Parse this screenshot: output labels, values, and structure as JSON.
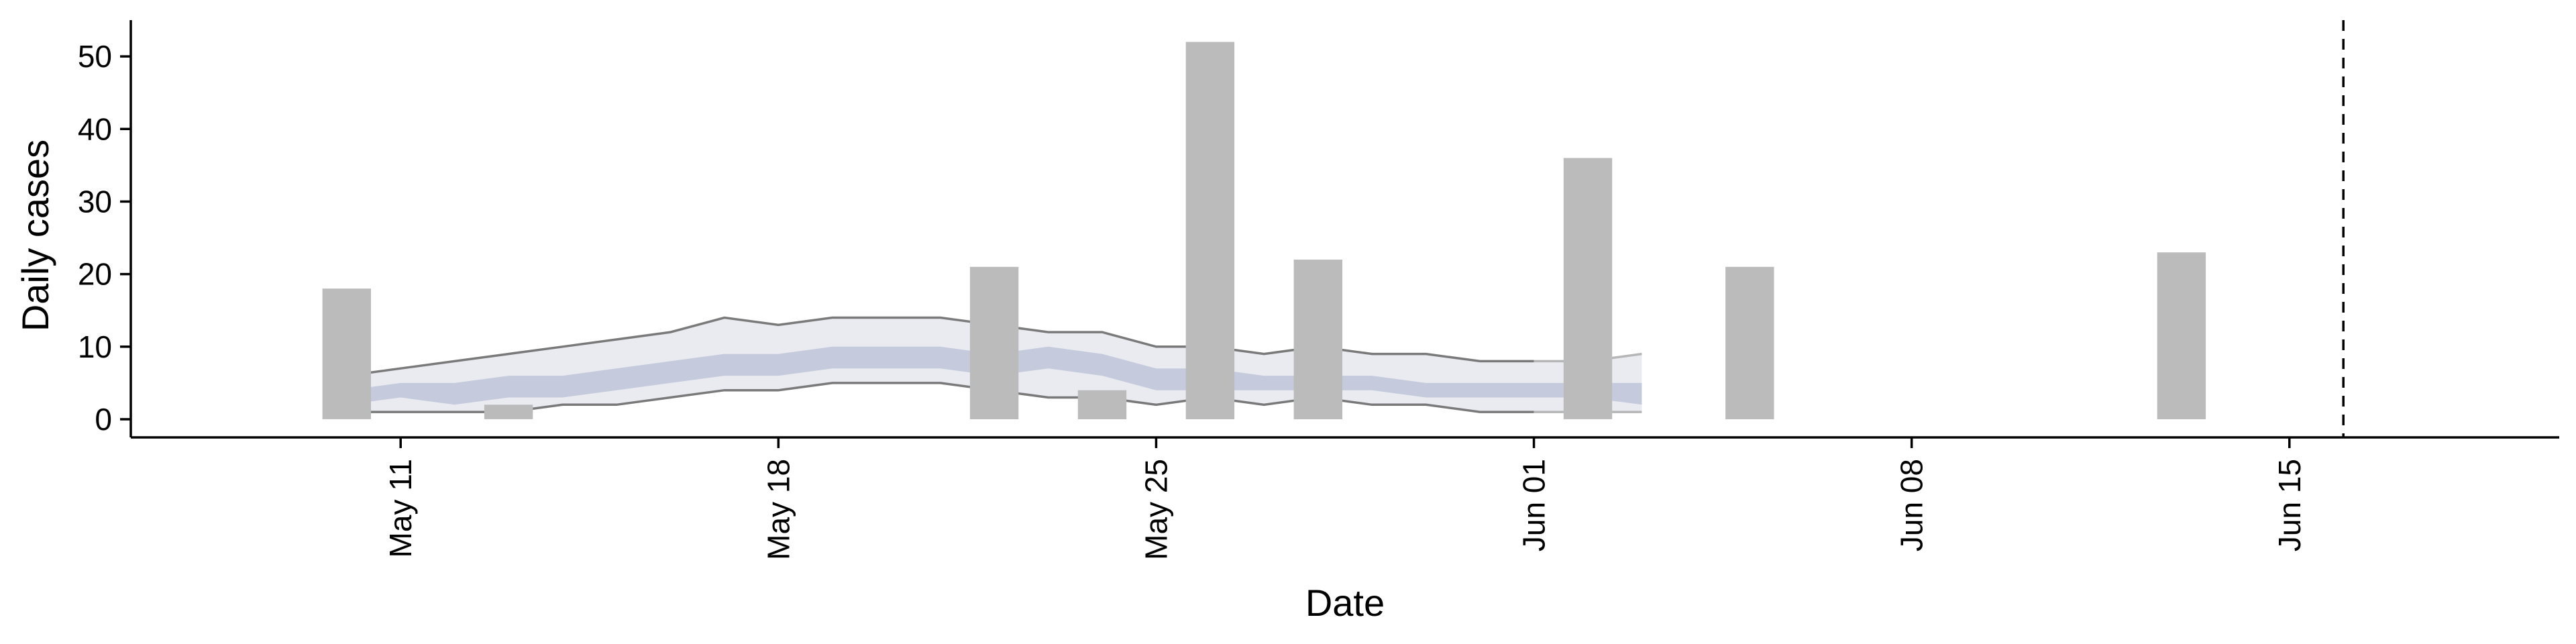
{
  "chart_data": {
    "type": "bar",
    "xlabel": "Date",
    "ylabel": "Daily cases",
    "ylim": [
      -2.5,
      55
    ],
    "yticks": [
      0,
      10,
      20,
      30,
      40,
      50
    ],
    "xlim": [
      "2020-05-06",
      "2020-06-20"
    ],
    "xticks": [
      {
        "date": "2020-05-11",
        "label": "May 11"
      },
      {
        "date": "2020-05-18",
        "label": "May 18"
      },
      {
        "date": "2020-05-25",
        "label": "May 25"
      },
      {
        "date": "2020-06-01",
        "label": "Jun 01"
      },
      {
        "date": "2020-06-08",
        "label": "Jun 08"
      },
      {
        "date": "2020-06-15",
        "label": "Jun 15"
      }
    ],
    "grid": false,
    "colors": {
      "bars": "#bbbbbb",
      "band_outer": "#e9ebf1",
      "band_inner": "#c5cbdc",
      "band_line": "#7a7a7a"
    },
    "bars": [
      {
        "date": "2020-05-10",
        "value": 18
      },
      {
        "date": "2020-05-13",
        "value": 2
      },
      {
        "date": "2020-05-22",
        "value": 21
      },
      {
        "date": "2020-05-24",
        "value": 4
      },
      {
        "date": "2020-05-26",
        "value": 52
      },
      {
        "date": "2020-05-28",
        "value": 22
      },
      {
        "date": "2020-06-02",
        "value": 36
      },
      {
        "date": "2020-06-05",
        "value": 21
      },
      {
        "date": "2020-06-13",
        "value": 23
      }
    ],
    "estimate_band": [
      {
        "date": "2020-05-10",
        "lo90": 1,
        "lo50": 2,
        "hi50": 4,
        "hi90": 6
      },
      {
        "date": "2020-05-11",
        "lo90": 1,
        "lo50": 3,
        "hi50": 5,
        "hi90": 7
      },
      {
        "date": "2020-05-12",
        "lo90": 1,
        "lo50": 2,
        "hi50": 5,
        "hi90": 8
      },
      {
        "date": "2020-05-13",
        "lo90": 1,
        "lo50": 3,
        "hi50": 6,
        "hi90": 9
      },
      {
        "date": "2020-05-14",
        "lo90": 2,
        "lo50": 3,
        "hi50": 6,
        "hi90": 10
      },
      {
        "date": "2020-05-15",
        "lo90": 2,
        "lo50": 4,
        "hi50": 7,
        "hi90": 11
      },
      {
        "date": "2020-05-16",
        "lo90": 3,
        "lo50": 5,
        "hi50": 8,
        "hi90": 12
      },
      {
        "date": "2020-05-17",
        "lo90": 4,
        "lo50": 6,
        "hi50": 9,
        "hi90": 14
      },
      {
        "date": "2020-05-18",
        "lo90": 4,
        "lo50": 6,
        "hi50": 9,
        "hi90": 13
      },
      {
        "date": "2020-05-19",
        "lo90": 5,
        "lo50": 7,
        "hi50": 10,
        "hi90": 14
      },
      {
        "date": "2020-05-20",
        "lo90": 5,
        "lo50": 7,
        "hi50": 10,
        "hi90": 14
      },
      {
        "date": "2020-05-21",
        "lo90": 5,
        "lo50": 7,
        "hi50": 10,
        "hi90": 14
      },
      {
        "date": "2020-05-22",
        "lo90": 4,
        "lo50": 6,
        "hi50": 9,
        "hi90": 13
      },
      {
        "date": "2020-05-23",
        "lo90": 3,
        "lo50": 7,
        "hi50": 10,
        "hi90": 12
      },
      {
        "date": "2020-05-24",
        "lo90": 3,
        "lo50": 6,
        "hi50": 9,
        "hi90": 12
      },
      {
        "date": "2020-05-25",
        "lo90": 2,
        "lo50": 4,
        "hi50": 7,
        "hi90": 10
      },
      {
        "date": "2020-05-26",
        "lo90": 3,
        "lo50": 4,
        "hi50": 7,
        "hi90": 10
      },
      {
        "date": "2020-05-27",
        "lo90": 2,
        "lo50": 4,
        "hi50": 6,
        "hi90": 9
      },
      {
        "date": "2020-05-28",
        "lo90": 3,
        "lo50": 4,
        "hi50": 6,
        "hi90": 10
      },
      {
        "date": "2020-05-29",
        "lo90": 2,
        "lo50": 4,
        "hi50": 6,
        "hi90": 9
      },
      {
        "date": "2020-05-30",
        "lo90": 2,
        "lo50": 3,
        "hi50": 5,
        "hi90": 9
      },
      {
        "date": "2020-05-31",
        "lo90": 1,
        "lo50": 3,
        "hi50": 5,
        "hi90": 8
      },
      {
        "date": "2020-06-01",
        "lo90": 1,
        "lo50": 3,
        "hi50": 5,
        "hi90": 8
      },
      {
        "date": "2020-06-02",
        "lo90": 1,
        "lo50": 3,
        "hi50": 5,
        "hi90": 8
      },
      {
        "date": "2020-06-03",
        "lo90": 1,
        "lo50": 2,
        "hi50": 5,
        "hi90": 9
      }
    ],
    "forecast_date": "2020-06-16"
  }
}
